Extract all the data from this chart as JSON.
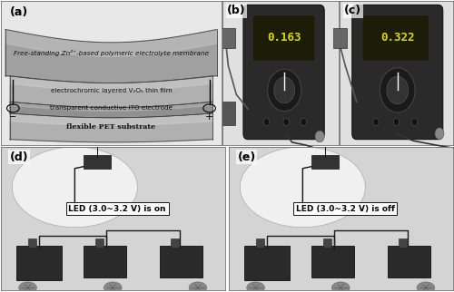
{
  "fig_width": 5.0,
  "fig_height": 3.22,
  "dpi": 100,
  "bg_color": "#ffffff",
  "panel_labels": [
    "(a)",
    "(b)",
    "(c)",
    "(d)",
    "(e)"
  ],
  "panel_label_fontsize": 9,
  "panel_label_fontweight": "bold",
  "layer_colors": {
    "top_membrane": "#a8a8a8",
    "top_membrane_light": "#c8c8c8",
    "electrochromic": "#b8b8b8",
    "electrochromic_light": "#d4d4d4",
    "ito_dark": "#888888",
    "ito_light": "#b0b0b0",
    "pet_dark": "#909090",
    "pet_light": "#c0c0c0",
    "bg_a": "#e8e8e8"
  },
  "layer_texts": [
    "Free-standing Zn²⁺-based polymeric electrolyte membrane",
    "electrochromic layered V₂O₅ thin film",
    "transparent conductive ITO electrode",
    "flexible PET substrate"
  ],
  "layer_fontsize": 5.2,
  "led_on_text": "LED (3.0~3.2 V) is on",
  "led_off_text": "LED (3.0~3.2 V) is off",
  "led_text_fontsize": 6.5,
  "panel_bg_photo": "#c8c8c8",
  "panel_bg_d": "#b8b8b8",
  "border_color": "#000000"
}
